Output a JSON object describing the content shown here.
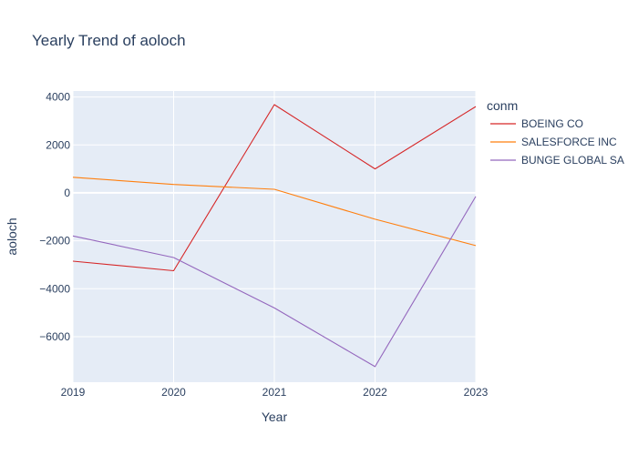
{
  "chart_data": {
    "type": "line",
    "title": "Yearly Trend of aoloch",
    "xlabel": "Year",
    "ylabel": "aoloch",
    "x": [
      2019,
      2020,
      2021,
      2022,
      2023
    ],
    "x_tick_labels": [
      "2019",
      "2020",
      "2021",
      "2022",
      "2023"
    ],
    "y_ticks": [
      4000,
      2000,
      0,
      -2000,
      -4000,
      -6000
    ],
    "y_tick_labels": [
      "4000",
      "2000",
      "0",
      "−2000",
      "−4000",
      "−6000"
    ],
    "ylim": [
      -7900,
      4250
    ],
    "xlim": [
      2019,
      2023
    ],
    "grid": true,
    "legend": {
      "title": "conm",
      "position": "right"
    },
    "series": [
      {
        "name": "BOEING CO",
        "color": "#d62728",
        "values": [
          -2850,
          -3250,
          3680,
          1000,
          3600
        ]
      },
      {
        "name": "SALESFORCE INC",
        "color": "#ff7f0e",
        "values": [
          650,
          350,
          150,
          -1100,
          -2200
        ]
      },
      {
        "name": "BUNGE GLOBAL SA",
        "color": "#9467bd",
        "values": [
          -1800,
          -2700,
          -4800,
          -7250,
          -150
        ]
      }
    ]
  }
}
